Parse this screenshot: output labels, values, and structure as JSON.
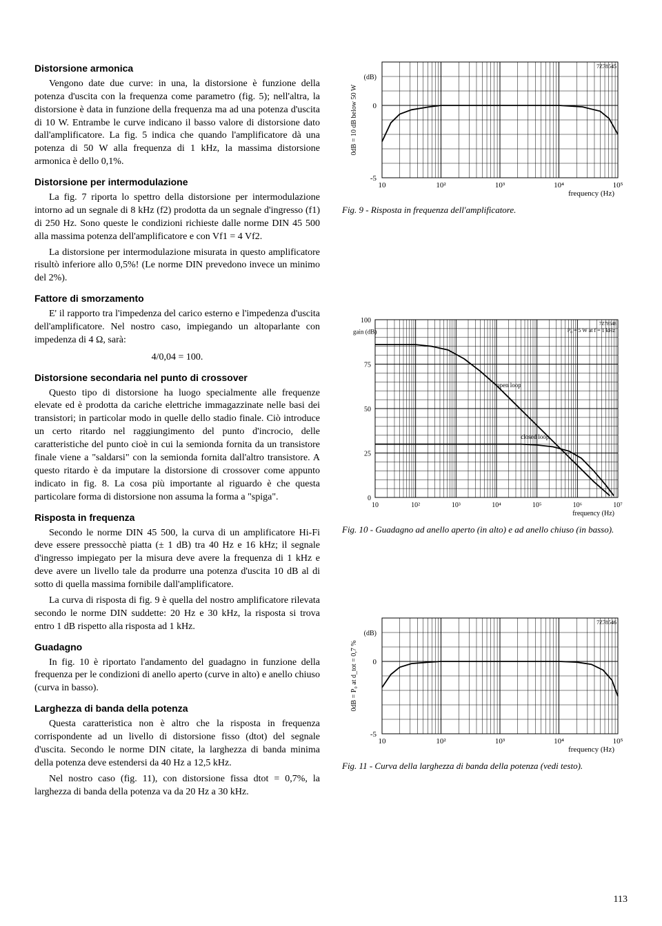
{
  "page_number": "113",
  "left": {
    "sec1": {
      "heading": "Distorsione armonica",
      "p1": "Vengono date due curve: in una, la distorsione è funzione della potenza d'uscita con la frequenza come parametro (fig. 5); nell'altra, la distorsione è data in funzione della frequenza ma ad una potenza d'uscita di 10 W. Entrambe le curve indicano il basso valore di distorsione dato dall'amplificatore. La fig. 5 indica che quando l'amplificatore dà una potenza di 50 W alla frequenza di 1 kHz, la massima distorsione armonica è dello 0,1%."
    },
    "sec2": {
      "heading": "Distorsione per intermodulazione",
      "p1": "La fig. 7 riporta lo spettro della distorsione per intermodulazione intorno ad un segnale di 8 kHz (f2) prodotta da un segnale d'ingresso (f1) di 250 Hz. Sono queste le condizioni richieste dalle norme DIN 45 500 alla massima potenza dell'amplificatore e con Vf1 = 4 Vf2.",
      "p2": "La distorsione per intermodulazione misurata in questo amplificatore risultò inferiore allo 0,5%! (Le norme DIN prevedono invece un minimo del 2%)."
    },
    "sec3": {
      "heading": "Fattore di smorzamento",
      "p1": "E' il rapporto tra l'impedenza del carico esterno e l'impedenza d'uscita dell'amplificatore. Nel nostro caso, impiegando un altoparlante con impedenza di 4 Ω, sarà:",
      "formula": "4/0,04 = 100."
    },
    "sec4": {
      "heading": "Distorsione secondaria nel punto di crossover",
      "p1": "Questo tipo di distorsione ha luogo specialmente alle frequenze elevate ed è prodotta da cariche elettriche immagazzinate nelle basi dei transistori; in particolar modo in quelle dello stadio finale. Ciò introduce un certo ritardo nel raggiungimento del punto d'incrocio, delle caratteristiche del punto cioè in cui la semionda fornita da un transistore finale viene a \"saldarsi\" con la semionda fornita dall'altro transistore. A questo ritardo è da imputare la distorsione di crossover come appunto indicato in fig. 8. La cosa più importante al riguardo è che questa particolare forma di distorsione non assuma la forma a \"spiga\"."
    },
    "sec5": {
      "heading": "Risposta in frequenza",
      "p1": "Secondo le norme DIN 45 500, la curva di un amplificatore Hi-Fi deve essere pressocchè piatta (± 1 dB) tra 40 Hz e 16 kHz; il segnale d'ingresso impiegato per la misura deve avere la frequenza di 1 kHz e deve avere un livello tale da produrre una potenza d'uscita 10 dB al di sotto di quella massima fornibile dall'amplificatore.",
      "p2": "La curva di risposta di fig. 9 è quella del nostro amplificatore rilevata secondo le norme DIN suddette: 20 Hz e 30 kHz, la risposta si trova entro 1 dB rispetto alla risposta ad 1 kHz."
    },
    "sec6": {
      "heading": "Guadagno",
      "p1": "In fig. 10 è riportato l'andamento del guadagno in funzione della frequenza per le condizioni di anello aperto (curve in alto) e anello chiuso (curva in basso)."
    },
    "sec7": {
      "heading": "Larghezza di banda della potenza",
      "p1": "Questa caratteristica non è altro che la risposta in frequenza corrispondente ad un livello di distorsione fisso (dtot) del segnale d'uscita. Secondo le norme DIN citate, la larghezza di banda minima della potenza deve estendersi da 40 Hz a 12,5 kHz.",
      "p2": "Nel nostro caso (fig. 11), con distorsione fissa dtot = 0,7%, la larghezza di banda della potenza va da 20 Hz a 30 kHz."
    }
  },
  "right": {
    "fig9": {
      "code": "7Z78545",
      "y_label": "0dB = 10 dB below 50 W",
      "y_unit": "(dB)",
      "x_label": "frequency (Hz)",
      "x_ticks": [
        "10",
        "10²",
        "10³",
        "10⁴",
        "10⁵"
      ],
      "y_ticks": [
        "-5",
        "0"
      ],
      "ylim": [
        -5,
        3
      ],
      "xlim_log": [
        1,
        5
      ],
      "curve": [
        [
          1.0,
          -2.5
        ],
        [
          1.15,
          -1.2
        ],
        [
          1.3,
          -0.6
        ],
        [
          1.5,
          -0.3
        ],
        [
          1.8,
          -0.1
        ],
        [
          2.0,
          0.0
        ],
        [
          3.0,
          0.0
        ],
        [
          4.0,
          0.0
        ],
        [
          4.4,
          -0.1
        ],
        [
          4.7,
          -0.4
        ],
        [
          4.85,
          -0.9
        ],
        [
          5.0,
          -2.0
        ]
      ],
      "line_color": "#000000",
      "grid_color": "#000000",
      "bg": "#ffffff",
      "caption": "Fig. 9 - Risposta in frequenza dell'amplificatore."
    },
    "fig10": {
      "code": "7Z78548",
      "y_label": "gain (dB)",
      "x_label": "frequency (Hz)",
      "note": "P₀ = 5 W at f = 1 kHz",
      "annot_open": "open loop",
      "annot_closed": "closed loop",
      "x_ticks": [
        "10",
        "10²",
        "10³",
        "10⁴",
        "10⁵",
        "10⁶",
        "10⁷"
      ],
      "y_ticks": [
        "0",
        "25",
        "50",
        "75",
        "100"
      ],
      "ylim": [
        0,
        100
      ],
      "xlim_log": [
        1,
        7
      ],
      "curve_open": [
        [
          1.0,
          86
        ],
        [
          1.5,
          86
        ],
        [
          2.0,
          86
        ],
        [
          2.4,
          85
        ],
        [
          2.8,
          83
        ],
        [
          3.2,
          78
        ],
        [
          3.6,
          71
        ],
        [
          4.0,
          63
        ],
        [
          4.4,
          54
        ],
        [
          4.8,
          45
        ],
        [
          5.2,
          36
        ],
        [
          5.6,
          27
        ],
        [
          6.0,
          18
        ],
        [
          6.4,
          9
        ],
        [
          6.8,
          1
        ]
      ],
      "curve_closed": [
        [
          1.0,
          30
        ],
        [
          2.0,
          30
        ],
        [
          3.0,
          30
        ],
        [
          4.0,
          30
        ],
        [
          4.6,
          30
        ],
        [
          5.0,
          29.5
        ],
        [
          5.4,
          28.5
        ],
        [
          5.8,
          26
        ],
        [
          6.1,
          22
        ],
        [
          6.4,
          15
        ],
        [
          6.7,
          7
        ],
        [
          6.9,
          1
        ]
      ],
      "line_color": "#000000",
      "grid_color": "#000000",
      "bg": "#ffffff",
      "caption": "Fig. 10 - Guadagno ad anello aperto (in alto) e ad anello chiuso (in basso)."
    },
    "fig11": {
      "code": "7Z78546",
      "y_label": "0dB = P₀ at d_tot = 0,7 %",
      "y_unit": "(dB)",
      "x_label": "frequency (Hz)",
      "x_ticks": [
        "10",
        "10²",
        "10³",
        "10⁴",
        "10⁵"
      ],
      "y_ticks": [
        "-5",
        "0"
      ],
      "ylim": [
        -5,
        3
      ],
      "xlim_log": [
        1,
        5
      ],
      "curve": [
        [
          1.0,
          -1.8
        ],
        [
          1.15,
          -0.9
        ],
        [
          1.3,
          -0.4
        ],
        [
          1.5,
          -0.15
        ],
        [
          1.8,
          -0.05
        ],
        [
          2.0,
          0.0
        ],
        [
          3.0,
          0.0
        ],
        [
          4.0,
          0.0
        ],
        [
          4.3,
          -0.05
        ],
        [
          4.55,
          -0.2
        ],
        [
          4.75,
          -0.6
        ],
        [
          4.9,
          -1.3
        ],
        [
          5.0,
          -2.4
        ]
      ],
      "line_color": "#000000",
      "grid_color": "#000000",
      "bg": "#ffffff",
      "caption": "Fig. 11 - Curva della larghezza di banda della potenza (vedi testo)."
    }
  }
}
